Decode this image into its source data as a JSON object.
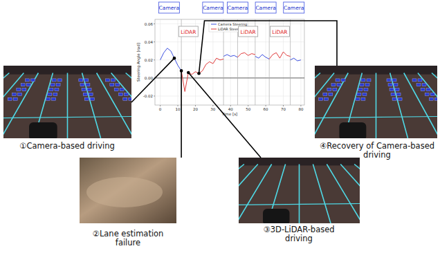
{
  "chart_data": {
    "type": "line",
    "x_label": "Time [s]",
    "y_label": "Steering Angle [rad]",
    "x": [
      0,
      2,
      4,
      6,
      8,
      10,
      12,
      14,
      16,
      18,
      20,
      22,
      24,
      26,
      28,
      30,
      32,
      34,
      36,
      38,
      40,
      42,
      44,
      46,
      48,
      50,
      52,
      54,
      56,
      58,
      60,
      62,
      64,
      66,
      68,
      70,
      72,
      74,
      76,
      78,
      80
    ],
    "series": [
      {
        "name": "Camera Steering",
        "color": "#3b4fe0",
        "values": [
          0.02,
          0.028,
          0.033,
          0.03,
          0.022,
          0.014,
          0.008,
          null,
          null,
          null,
          null,
          null,
          null,
          null,
          null,
          null,
          null,
          null,
          0.024,
          0.026,
          0.024,
          0.025,
          0.023,
          null,
          null,
          null,
          null,
          0.024,
          0.022,
          0.026,
          0.023,
          0.021,
          null,
          null,
          null,
          null,
          null,
          0.02,
          0.022,
          0.019,
          0.02
        ]
      },
      {
        "name": "LiDAR Steering",
        "color": "#e03b3b",
        "values": [
          null,
          null,
          null,
          null,
          null,
          null,
          0.008,
          -0.015,
          0.006,
          0.004,
          0.007,
          0.005,
          0.008,
          0.015,
          0.018,
          0.016,
          0.022,
          0.02,
          0.021,
          null,
          null,
          null,
          0.023,
          0.027,
          0.028,
          0.025,
          0.027,
          0.026,
          null,
          null,
          null,
          0.021,
          0.026,
          0.028,
          0.022,
          0.029,
          0.025,
          0.024,
          null,
          null,
          null
        ]
      }
    ],
    "xlim": [
      -3,
      82
    ],
    "ylim": [
      -0.03,
      0.065
    ],
    "xticks": [
      0,
      10,
      20,
      30,
      40,
      50,
      60,
      70,
      80
    ],
    "yticks": [
      -0.02,
      {
        "value": 0,
        "label": "0.00"
      },
      0.02,
      0.04,
      0.06
    ],
    "grid": true,
    "legend": "top",
    "switch_times": [
      12,
      36,
      44,
      54,
      62,
      74
    ],
    "mode_labels": {
      "camera": {
        "text": "Camera",
        "x": [
          5,
          30,
          44,
          60,
          76
        ]
      },
      "lidar": {
        "text": "LiDAR",
        "x": [
          16,
          50,
          68
        ]
      }
    },
    "photos": [
      {
        "caption": "①Camera-based driving"
      },
      {
        "caption": "②Lane estimation failure"
      },
      {
        "caption": "③3D-LiDAR-based driving"
      },
      {
        "caption": "④Recovery of Camera-based driving"
      }
    ]
  }
}
